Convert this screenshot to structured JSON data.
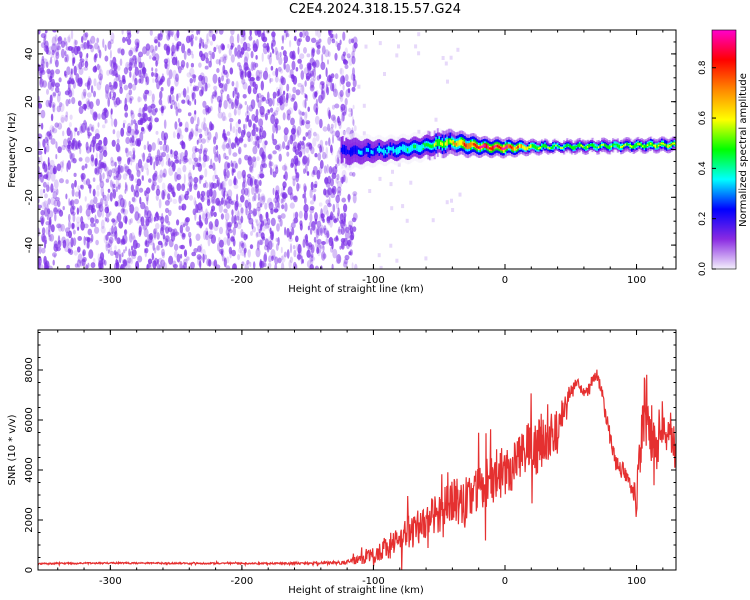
{
  "title": "C2E4.2024.318.15.57.G24",
  "colors": {
    "snr_line": "#e53030",
    "axis": "#000000",
    "noise": "#7b2fe6",
    "colorbar": [
      "#f4f0fc",
      "#8a2be2",
      "#0000ff",
      "#00ffff",
      "#00ff00",
      "#ffff00",
      "#ff8800",
      "#ff0000",
      "#ff00cc"
    ]
  },
  "chart_data": [
    {
      "type": "heatmap",
      "title": "C2E4.2024.318.15.57.G24",
      "xlabel": "Height of straight line (km)",
      "ylabel": "Frequency (Hz)",
      "xlim": [
        -355,
        130
      ],
      "ylim": [
        -50,
        50
      ],
      "xticks": [
        -300,
        -200,
        -100,
        0,
        100
      ],
      "yticks": [
        -40,
        -20,
        0,
        20,
        40
      ],
      "colorbar": {
        "label": "Normalized spectral amplitude",
        "range": [
          0.0,
          0.95
        ],
        "ticks": [
          0.0,
          0.2,
          0.4,
          0.6,
          0.8
        ]
      },
      "noise_region": {
        "x_range": [
          -355,
          -118
        ],
        "freq_range": [
          -50,
          50
        ]
      },
      "signal_band": [
        {
          "x": -125,
          "freq": -0.5,
          "width": 8,
          "amp": 0.2
        },
        {
          "x": -110,
          "freq": -0.8,
          "width": 7,
          "amp": 0.28
        },
        {
          "x": -95,
          "freq": -0.5,
          "width": 6,
          "amp": 0.32
        },
        {
          "x": -80,
          "freq": 0.0,
          "width": 6,
          "amp": 0.36
        },
        {
          "x": -65,
          "freq": 1.0,
          "width": 6,
          "amp": 0.42
        },
        {
          "x": -50,
          "freq": 2.5,
          "width": 6,
          "amp": 0.55
        },
        {
          "x": -40,
          "freq": 3.0,
          "width": 5,
          "amp": 0.62
        },
        {
          "x": -30,
          "freq": 2.0,
          "width": 5,
          "amp": 0.75
        },
        {
          "x": -15,
          "freq": 1.0,
          "width": 4,
          "amp": 0.85
        },
        {
          "x": 0,
          "freq": 0.8,
          "width": 4,
          "amp": 0.88
        },
        {
          "x": 20,
          "freq": 1.0,
          "width": 3,
          "amp": 0.55
        },
        {
          "x": 50,
          "freq": 1.2,
          "width": 3,
          "amp": 0.5
        },
        {
          "x": 80,
          "freq": 1.5,
          "width": 3,
          "amp": 0.52
        },
        {
          "x": 110,
          "freq": 1.8,
          "width": 3,
          "amp": 0.55
        },
        {
          "x": 130,
          "freq": 2.0,
          "width": 3,
          "amp": 0.6
        }
      ]
    },
    {
      "type": "line",
      "xlabel": "Height of straight line (km)",
      "ylabel": "SNR (10 * v/v)",
      "xlim": [
        -355,
        130
      ],
      "ylim": [
        0,
        9600
      ],
      "xticks": [
        -300,
        -200,
        -100,
        0,
        100
      ],
      "yticks": [
        0,
        2000,
        4000,
        6000,
        8000
      ],
      "series": [
        {
          "name": "SNR",
          "x": [
            -355,
            -300,
            -250,
            -200,
            -150,
            -120,
            -100,
            -90,
            -80,
            -70,
            -60,
            -50,
            -40,
            -30,
            -20,
            -10,
            0,
            10,
            20,
            30,
            40,
            50,
            55,
            60,
            65,
            70,
            75,
            80,
            85,
            90,
            95,
            100,
            105,
            110,
            115,
            120,
            125,
            130
          ],
          "values": [
            250,
            280,
            270,
            260,
            270,
            300,
            600,
            900,
            1200,
            1600,
            2000,
            2300,
            2700,
            2800,
            3300,
            3700,
            4000,
            4500,
            4800,
            5200,
            5600,
            7200,
            7600,
            7100,
            7500,
            7800,
            6800,
            5200,
            4200,
            4000,
            3700,
            2700,
            6400,
            5700,
            4600,
            5200,
            6000,
            4500
          ],
          "spread": [
            30,
            30,
            30,
            30,
            40,
            80,
            350,
            500,
            600,
            700,
            750,
            800,
            900,
            950,
            1000,
            1050,
            1100,
            1100,
            1150,
            1200,
            1000,
            250,
            200,
            200,
            200,
            200,
            300,
            400,
            400,
            400,
            450,
            700,
            1500,
            1200,
            900,
            900,
            1000,
            900
          ]
        }
      ]
    }
  ]
}
